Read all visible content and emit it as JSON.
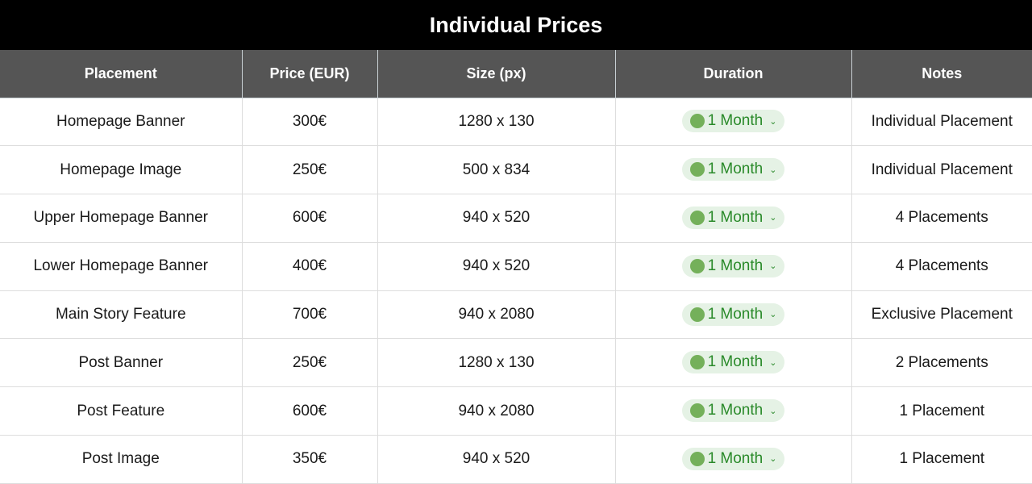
{
  "title": "Individual Prices",
  "columns": [
    "Placement",
    "Price (EUR)",
    "Size (px)",
    "Duration",
    "Notes"
  ],
  "colors": {
    "header_bg": "#555555",
    "title_bg": "#000000",
    "pill_bg": "#e5f2e5",
    "pill_dot": "#74b05a",
    "pill_text": "#2a8a2a"
  },
  "rows": [
    {
      "placement": "Homepage Banner",
      "price": "300€",
      "size": "1280 x 130",
      "duration": "1 Month",
      "notes": "Individual Placement"
    },
    {
      "placement": "Homepage Image",
      "price": "250€",
      "size": "500 x 834",
      "duration": "1 Month",
      "notes": "Individual Placement"
    },
    {
      "placement": "Upper Homepage Banner",
      "price": "600€",
      "size": "940 x 520",
      "duration": "1 Month",
      "notes": "4 Placements"
    },
    {
      "placement": "Lower Homepage Banner",
      "price": "400€",
      "size": "940 x 520",
      "duration": "1 Month",
      "notes": "4 Placements"
    },
    {
      "placement": "Main Story Feature",
      "price": "700€",
      "size": "940 x 2080",
      "duration": "1 Month",
      "notes": "Exclusive Placement"
    },
    {
      "placement": "Post Banner",
      "price": "250€",
      "size": "1280 x 130",
      "duration": "1 Month",
      "notes": "2 Placements"
    },
    {
      "placement": "Post Feature",
      "price": "600€",
      "size": "940 x 2080",
      "duration": "1 Month",
      "notes": "1 Placement"
    },
    {
      "placement": "Post Image",
      "price": "350€",
      "size": "940 x 520",
      "duration": "1 Month",
      "notes": "1 Placement"
    }
  ]
}
